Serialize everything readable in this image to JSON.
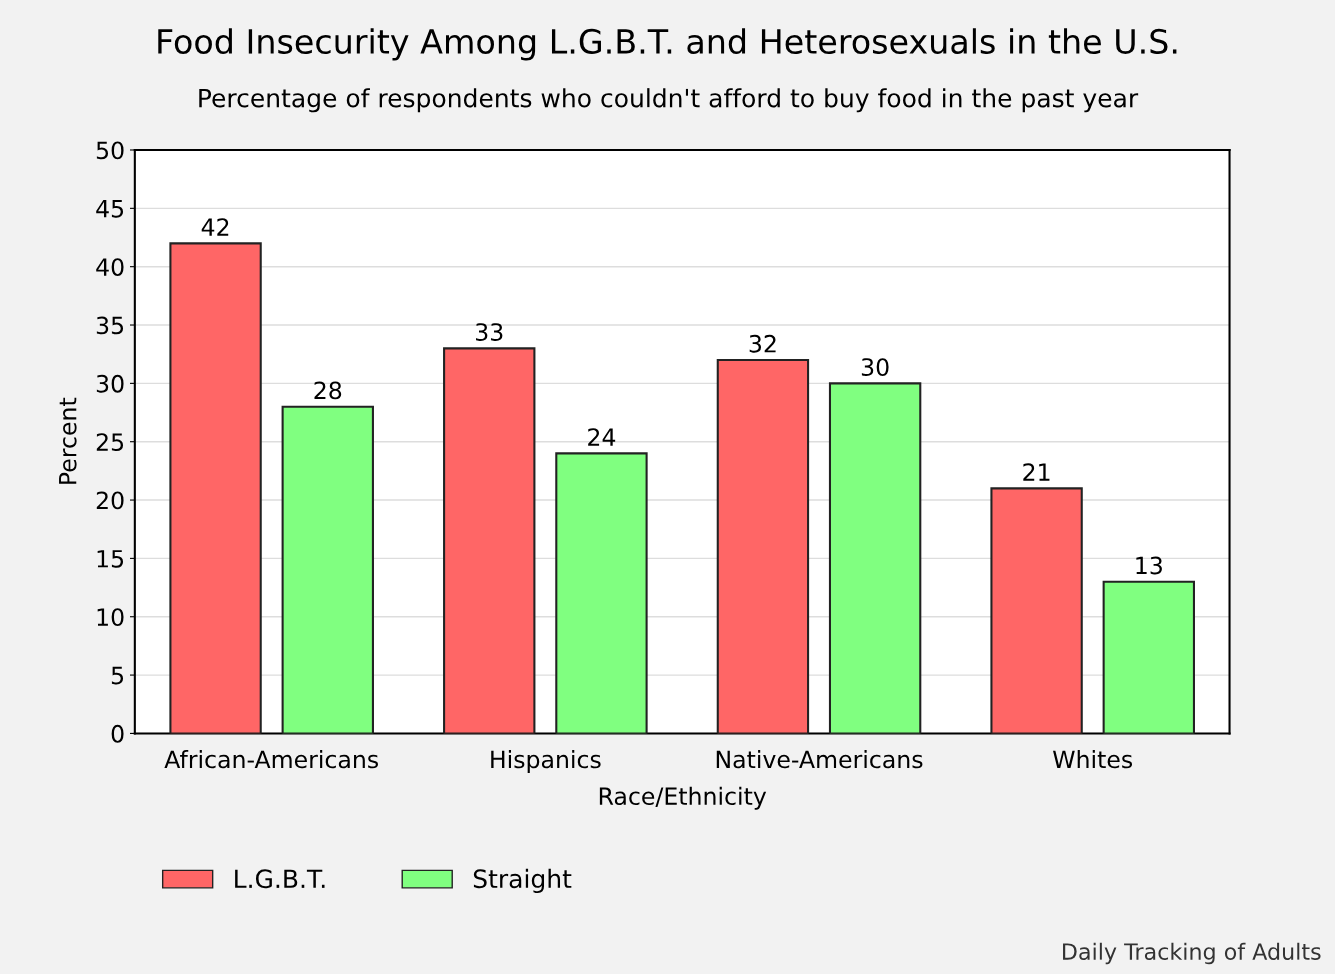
{
  "chart_data": {
    "type": "bar",
    "title": "Food Insecurity Among L.G.B.T. and Heterosexuals in the U.S.",
    "subtitle": "Percentage of respondents who couldn't afford to buy food in the past year",
    "xlabel": "Race/Ethnicity",
    "ylabel": "Percent",
    "categories": [
      "African-Americans",
      "Hispanics",
      "Native-Americans",
      "Whites"
    ],
    "series": [
      {
        "name": "L.G.B.T.",
        "color": "#ff6666",
        "values": [
          42,
          33,
          32,
          21
        ]
      },
      {
        "name": "Straight",
        "color": "#80ff80",
        "values": [
          28,
          24,
          30,
          13
        ]
      }
    ],
    "ylim": [
      0,
      50
    ],
    "yticks": [
      0,
      5,
      10,
      15,
      20,
      25,
      30,
      35,
      40,
      45,
      50
    ],
    "grid": "y",
    "legend": "bottom left",
    "data_labels": true,
    "annotations": [
      "Daily Tracking of Adults"
    ]
  }
}
